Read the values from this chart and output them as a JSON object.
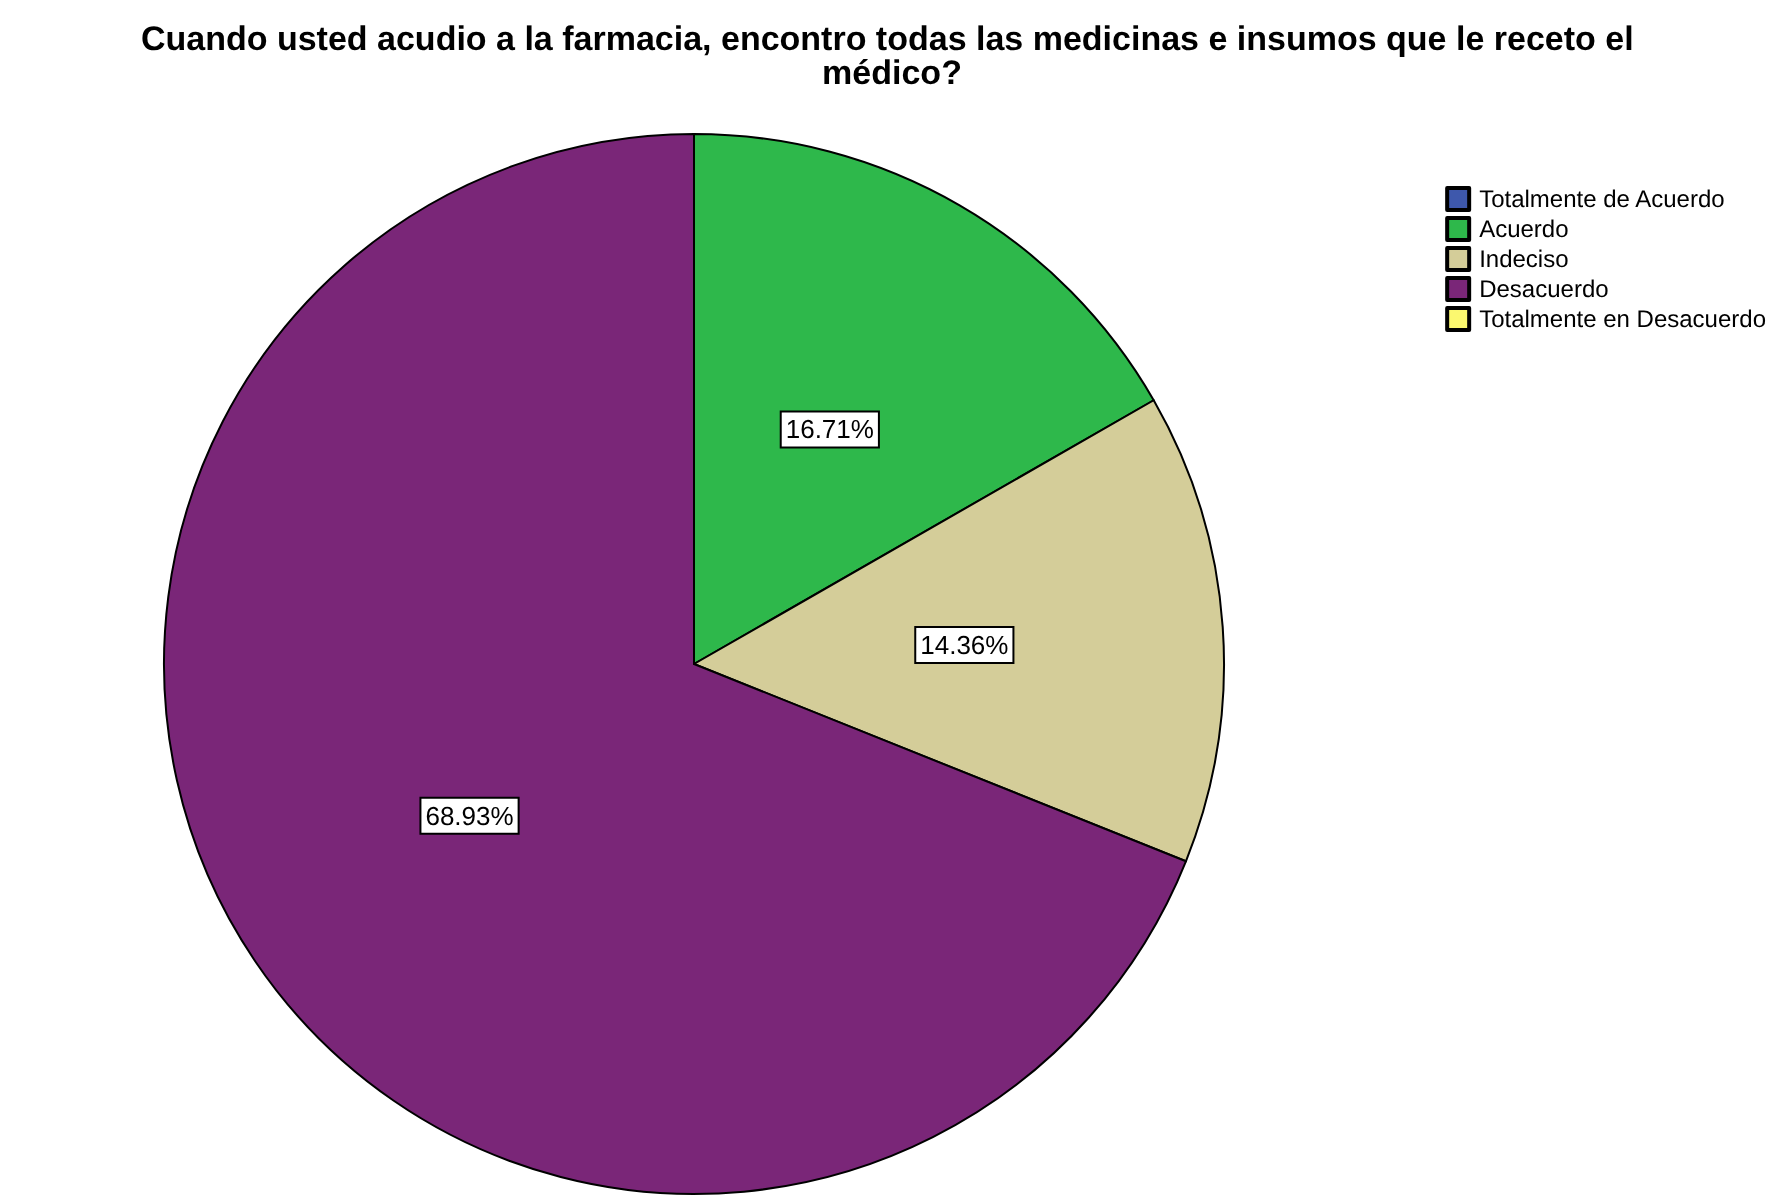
{
  "chart_data": {
    "type": "pie",
    "title": "Cuando usted acudio a la farmacia, encontro todas las medicinas e insumos que le receto el médico?",
    "categories": [
      "Totalmente de Acuerdo",
      "Acuerdo",
      "Indeciso",
      "Desacuerdo",
      "Totalmente en Desacuerdo"
    ],
    "values": [
      0,
      16.71,
      14.36,
      68.93,
      0
    ],
    "colors": [
      "#3e58ac",
      "#2eb84b",
      "#d4cd99",
      "#7a2678",
      "#fbf86f"
    ],
    "value_labels": [
      null,
      "16.71%",
      "14.36%",
      "68.93%",
      null
    ],
    "legend": "top right"
  }
}
